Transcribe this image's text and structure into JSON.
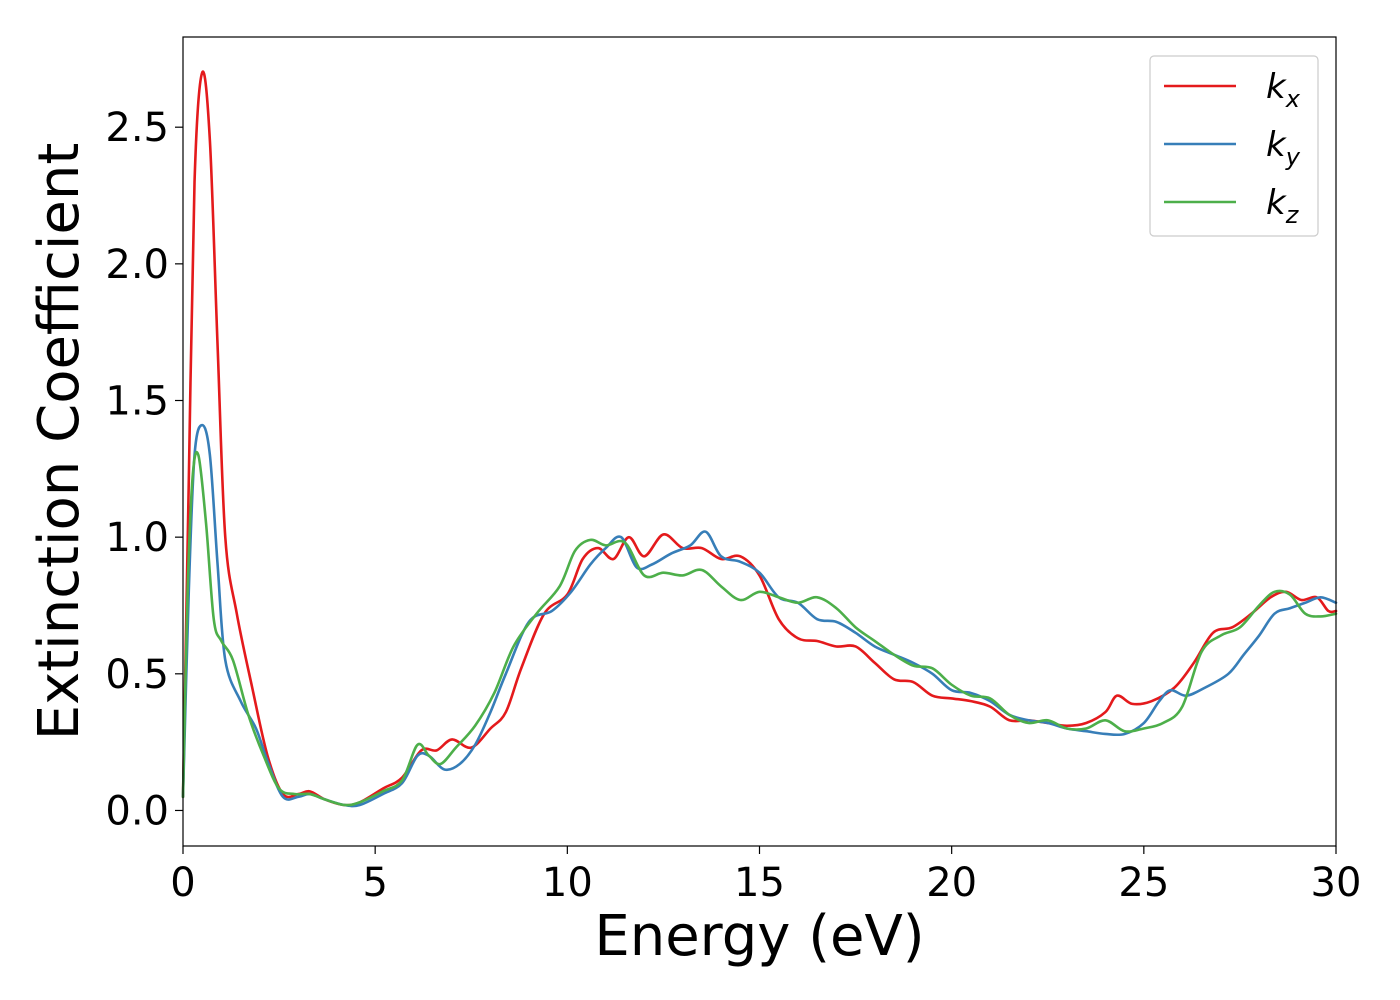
{
  "chart_data": {
    "type": "line",
    "xlabel": "Energy (eV)",
    "ylabel": "Extinction Coefficient",
    "xlim": [
      0,
      30
    ],
    "ylim": [
      -0.13,
      2.83
    ],
    "xticks": [
      0,
      5,
      10,
      15,
      20,
      25,
      30
    ],
    "yticks": [
      0.0,
      0.5,
      1.0,
      1.5,
      2.0,
      2.5
    ],
    "xtick_labels": [
      "0",
      "5",
      "10",
      "15",
      "20",
      "25",
      "30"
    ],
    "ytick_labels": [
      "0.0",
      "0.5",
      "1.0",
      "1.5",
      "2.0",
      "2.5"
    ],
    "grid": false,
    "legend_position": "top-right",
    "series": [
      {
        "name": "k",
        "subscript": "x",
        "color": "#e41a1c",
        "points": [
          [
            0,
            0.05
          ],
          [
            0.15,
            1.2
          ],
          [
            0.3,
            2.3
          ],
          [
            0.5,
            2.7
          ],
          [
            0.7,
            2.45
          ],
          [
            0.9,
            1.7
          ],
          [
            1.1,
            1.0
          ],
          [
            1.4,
            0.72
          ],
          [
            1.8,
            0.45
          ],
          [
            2.2,
            0.2
          ],
          [
            2.6,
            0.06
          ],
          [
            3.0,
            0.06
          ],
          [
            3.3,
            0.07
          ],
          [
            3.7,
            0.04
          ],
          [
            4.2,
            0.02
          ],
          [
            4.6,
            0.03
          ],
          [
            5.2,
            0.08
          ],
          [
            5.7,
            0.12
          ],
          [
            6.2,
            0.22
          ],
          [
            6.6,
            0.22
          ],
          [
            7.0,
            0.26
          ],
          [
            7.5,
            0.23
          ],
          [
            8.0,
            0.3
          ],
          [
            8.4,
            0.36
          ],
          [
            8.8,
            0.52
          ],
          [
            9.4,
            0.72
          ],
          [
            10.0,
            0.79
          ],
          [
            10.4,
            0.92
          ],
          [
            10.8,
            0.96
          ],
          [
            11.2,
            0.92
          ],
          [
            11.6,
            1.0
          ],
          [
            12.0,
            0.93
          ],
          [
            12.5,
            1.01
          ],
          [
            13.0,
            0.96
          ],
          [
            13.5,
            0.96
          ],
          [
            14.0,
            0.92
          ],
          [
            14.5,
            0.93
          ],
          [
            15.0,
            0.86
          ],
          [
            15.5,
            0.7
          ],
          [
            16.0,
            0.63
          ],
          [
            16.5,
            0.62
          ],
          [
            17.0,
            0.6
          ],
          [
            17.5,
            0.6
          ],
          [
            18.0,
            0.54
          ],
          [
            18.5,
            0.48
          ],
          [
            19.0,
            0.47
          ],
          [
            19.5,
            0.42
          ],
          [
            20.0,
            0.41
          ],
          [
            20.5,
            0.4
          ],
          [
            21.0,
            0.38
          ],
          [
            21.5,
            0.33
          ],
          [
            22.0,
            0.33
          ],
          [
            22.5,
            0.32
          ],
          [
            23.0,
            0.31
          ],
          [
            23.5,
            0.32
          ],
          [
            24.0,
            0.36
          ],
          [
            24.3,
            0.42
          ],
          [
            24.7,
            0.39
          ],
          [
            25.2,
            0.4
          ],
          [
            25.8,
            0.45
          ],
          [
            26.3,
            0.54
          ],
          [
            26.8,
            0.65
          ],
          [
            27.3,
            0.67
          ],
          [
            27.8,
            0.72
          ],
          [
            28.3,
            0.78
          ],
          [
            28.7,
            0.8
          ],
          [
            29.1,
            0.77
          ],
          [
            29.5,
            0.78
          ],
          [
            29.8,
            0.73
          ],
          [
            30,
            0.73
          ]
        ]
      },
      {
        "name": "k",
        "subscript": "y",
        "color": "#377eb8",
        "points": [
          [
            0,
            0.05
          ],
          [
            0.15,
            0.8
          ],
          [
            0.3,
            1.3
          ],
          [
            0.5,
            1.41
          ],
          [
            0.7,
            1.3
          ],
          [
            0.9,
            0.9
          ],
          [
            1.1,
            0.55
          ],
          [
            1.5,
            0.4
          ],
          [
            1.9,
            0.3
          ],
          [
            2.2,
            0.18
          ],
          [
            2.6,
            0.05
          ],
          [
            3.0,
            0.05
          ],
          [
            3.3,
            0.06
          ],
          [
            3.7,
            0.04
          ],
          [
            4.2,
            0.02
          ],
          [
            4.6,
            0.02
          ],
          [
            5.2,
            0.06
          ],
          [
            5.7,
            0.1
          ],
          [
            6.1,
            0.2
          ],
          [
            6.4,
            0.2
          ],
          [
            6.8,
            0.15
          ],
          [
            7.2,
            0.17
          ],
          [
            7.6,
            0.24
          ],
          [
            8.0,
            0.36
          ],
          [
            8.4,
            0.5
          ],
          [
            9.0,
            0.69
          ],
          [
            9.6,
            0.73
          ],
          [
            10.1,
            0.8
          ],
          [
            10.6,
            0.9
          ],
          [
            11.0,
            0.96
          ],
          [
            11.4,
            1.0
          ],
          [
            11.8,
            0.89
          ],
          [
            12.2,
            0.9
          ],
          [
            12.7,
            0.94
          ],
          [
            13.2,
            0.97
          ],
          [
            13.6,
            1.02
          ],
          [
            14.0,
            0.93
          ],
          [
            14.5,
            0.91
          ],
          [
            15.0,
            0.87
          ],
          [
            15.5,
            0.78
          ],
          [
            16.0,
            0.76
          ],
          [
            16.5,
            0.7
          ],
          [
            17.0,
            0.69
          ],
          [
            17.5,
            0.65
          ],
          [
            18.0,
            0.6
          ],
          [
            18.5,
            0.57
          ],
          [
            19.0,
            0.54
          ],
          [
            19.5,
            0.5
          ],
          [
            20.0,
            0.44
          ],
          [
            20.5,
            0.43
          ],
          [
            21.0,
            0.4
          ],
          [
            21.5,
            0.35
          ],
          [
            22.0,
            0.33
          ],
          [
            22.5,
            0.32
          ],
          [
            23.0,
            0.3
          ],
          [
            23.5,
            0.29
          ],
          [
            24.0,
            0.28
          ],
          [
            24.5,
            0.28
          ],
          [
            25.0,
            0.32
          ],
          [
            25.4,
            0.4
          ],
          [
            25.7,
            0.44
          ],
          [
            26.1,
            0.42
          ],
          [
            26.6,
            0.45
          ],
          [
            27.2,
            0.5
          ],
          [
            27.6,
            0.57
          ],
          [
            28.0,
            0.64
          ],
          [
            28.4,
            0.72
          ],
          [
            28.8,
            0.74
          ],
          [
            29.2,
            0.76
          ],
          [
            29.6,
            0.78
          ],
          [
            30,
            0.76
          ]
        ]
      },
      {
        "name": "k",
        "subscript": "z",
        "color": "#4daf4a",
        "points": [
          [
            0,
            0.05
          ],
          [
            0.12,
            0.8
          ],
          [
            0.25,
            1.22
          ],
          [
            0.4,
            1.3
          ],
          [
            0.6,
            1.05
          ],
          [
            0.8,
            0.7
          ],
          [
            1.0,
            0.62
          ],
          [
            1.3,
            0.55
          ],
          [
            1.7,
            0.35
          ],
          [
            2.1,
            0.2
          ],
          [
            2.5,
            0.08
          ],
          [
            2.9,
            0.06
          ],
          [
            3.3,
            0.06
          ],
          [
            3.7,
            0.04
          ],
          [
            4.2,
            0.02
          ],
          [
            4.6,
            0.03
          ],
          [
            5.2,
            0.07
          ],
          [
            5.7,
            0.11
          ],
          [
            6.1,
            0.24
          ],
          [
            6.4,
            0.2
          ],
          [
            6.7,
            0.17
          ],
          [
            7.1,
            0.23
          ],
          [
            7.6,
            0.31
          ],
          [
            8.1,
            0.43
          ],
          [
            8.6,
            0.6
          ],
          [
            9.2,
            0.72
          ],
          [
            9.8,
            0.82
          ],
          [
            10.2,
            0.95
          ],
          [
            10.6,
            0.99
          ],
          [
            11.0,
            0.97
          ],
          [
            11.5,
            0.98
          ],
          [
            12.0,
            0.86
          ],
          [
            12.5,
            0.87
          ],
          [
            13.0,
            0.86
          ],
          [
            13.5,
            0.88
          ],
          [
            14.0,
            0.82
          ],
          [
            14.5,
            0.77
          ],
          [
            15.0,
            0.8
          ],
          [
            15.5,
            0.78
          ],
          [
            16.0,
            0.76
          ],
          [
            16.5,
            0.78
          ],
          [
            17.0,
            0.74
          ],
          [
            17.5,
            0.67
          ],
          [
            18.0,
            0.62
          ],
          [
            18.5,
            0.57
          ],
          [
            19.0,
            0.53
          ],
          [
            19.5,
            0.52
          ],
          [
            20.0,
            0.46
          ],
          [
            20.5,
            0.42
          ],
          [
            21.0,
            0.41
          ],
          [
            21.5,
            0.35
          ],
          [
            22.0,
            0.32
          ],
          [
            22.5,
            0.33
          ],
          [
            23.0,
            0.3
          ],
          [
            23.5,
            0.3
          ],
          [
            24.0,
            0.33
          ],
          [
            24.5,
            0.29
          ],
          [
            25.0,
            0.3
          ],
          [
            25.5,
            0.32
          ],
          [
            26.0,
            0.38
          ],
          [
            26.5,
            0.58
          ],
          [
            27.0,
            0.64
          ],
          [
            27.5,
            0.67
          ],
          [
            28.0,
            0.75
          ],
          [
            28.4,
            0.8
          ],
          [
            28.8,
            0.79
          ],
          [
            29.2,
            0.72
          ],
          [
            29.6,
            0.71
          ],
          [
            30,
            0.72
          ]
        ]
      }
    ]
  }
}
